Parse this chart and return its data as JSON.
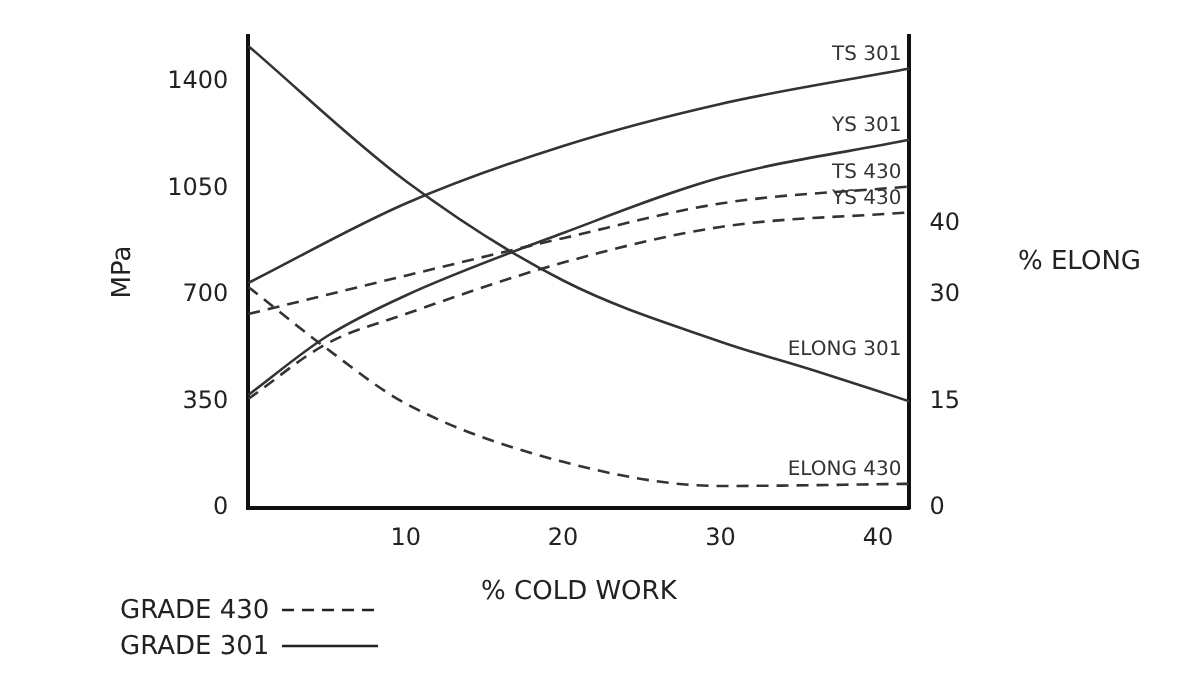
{
  "chart_data": {
    "type": "line",
    "xlabel": "% COLD WORK",
    "ylabel": "MPa",
    "y2label": "% ELONG",
    "xlim": [
      0,
      42
    ],
    "xticks": [
      10,
      20,
      30,
      40
    ],
    "ylim": [
      0,
      1550
    ],
    "yticks": [
      0,
      350,
      700,
      1050,
      1400
    ],
    "y2lim": [
      0,
      66.4
    ],
    "y2ticks": [
      0,
      15,
      30,
      40
    ],
    "grid": false,
    "marker": "none",
    "annotations": [
      "GRADE 430",
      "GRADE 301"
    ],
    "series": [
      {
        "name": "TS 430",
        "color": "#333333",
        "line_style": "dashed",
        "x": [
          0,
          10,
          20,
          30,
          42
        ],
        "values": [
          637,
          763,
          886,
          1000,
          1056
        ]
      },
      {
        "name": "YS 430",
        "color": "#333333",
        "line_style": "dashed",
        "x": [
          0,
          5,
          10,
          20,
          30,
          42
        ],
        "values": [
          358,
          540,
          637,
          806,
          923,
          971
        ]
      },
      {
        "name": "ELONG 430",
        "color": "#333333",
        "line_style": "dashed",
        "axis": "y2",
        "x": [
          0,
          5,
          10,
          20,
          30,
          42
        ],
        "values": [
          31.1,
          22.4,
          14.7,
          6.5,
          3.1,
          3.4
        ]
      },
      {
        "name": "TS 301",
        "color": "#333333",
        "line_style": "solid",
        "x": [
          0,
          10,
          20,
          30,
          42
        ],
        "values": [
          739,
          1000,
          1189,
          1327,
          1443
        ]
      },
      {
        "name": "YS 301",
        "color": "#333333",
        "line_style": "solid",
        "x": [
          0,
          5,
          10,
          20,
          30,
          42
        ],
        "values": [
          371,
          564,
          698,
          903,
          1085,
          1209
        ]
      },
      {
        "name": "ELONG 301",
        "color": "#333333",
        "line_style": "solid",
        "axis": "y2",
        "x": [
          0,
          10,
          20,
          30,
          36,
          42
        ],
        "values": [
          65,
          46,
          32,
          23.4,
          19.3,
          15
        ]
      }
    ]
  }
}
